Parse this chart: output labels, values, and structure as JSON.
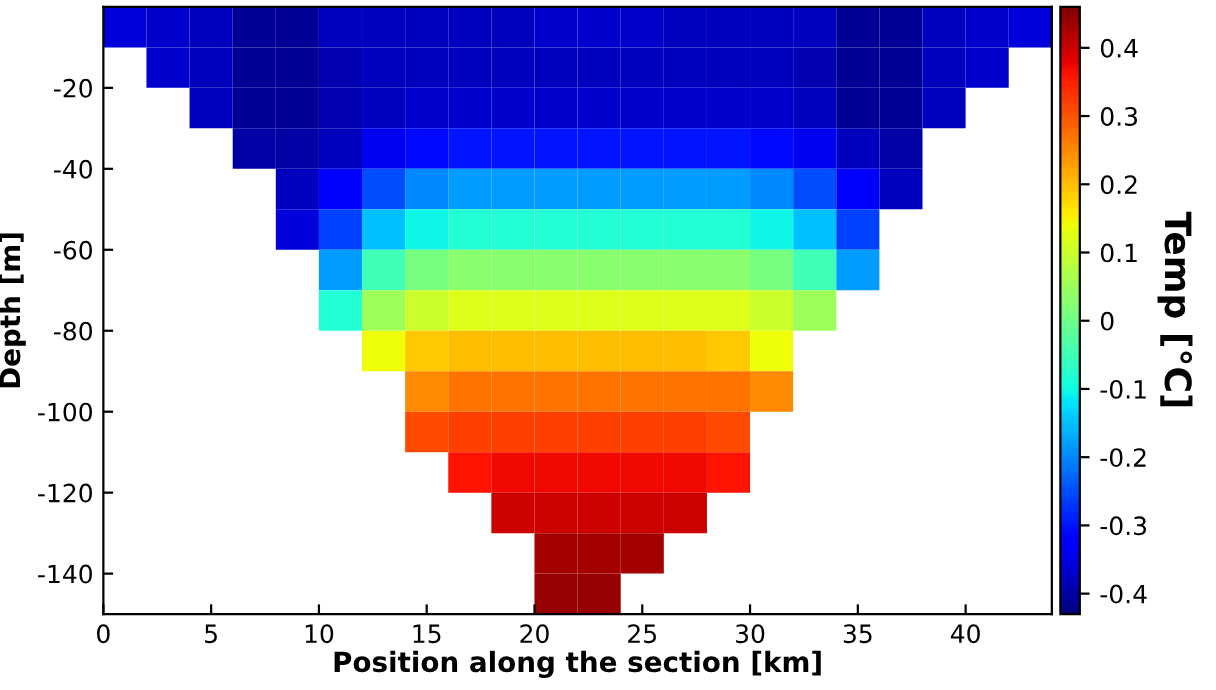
{
  "chart_data": {
    "type": "heatmap",
    "xlabel": "Position along the section [km]",
    "ylabel": "Depth [m]",
    "clabel": "Temp [°C]",
    "xlim": [
      0,
      44
    ],
    "ylim": [
      -150,
      0
    ],
    "xticks": [
      0,
      5,
      10,
      15,
      20,
      25,
      30,
      35,
      40
    ],
    "yticks": [
      -140,
      -120,
      -100,
      -80,
      -60,
      -40,
      -20
    ],
    "clim": [
      -0.43,
      0.46
    ],
    "cticks": [
      -0.4,
      -0.3,
      -0.2,
      -0.1,
      0,
      0.1,
      0.2,
      0.3,
      0.4
    ],
    "cells": [
      [
        -0.36,
        -0.37,
        -0.38,
        -0.41,
        -0.41,
        -0.38,
        -0.38,
        -0.38,
        -0.38,
        -0.38,
        -0.37,
        -0.37,
        -0.37,
        -0.38,
        -0.38,
        -0.38,
        -0.38,
        -0.41,
        -0.41,
        -0.38,
        -0.37,
        -0.36
      ],
      [
        null,
        -0.37,
        -0.38,
        -0.41,
        -0.41,
        -0.39,
        -0.38,
        -0.38,
        -0.38,
        -0.38,
        -0.38,
        -0.38,
        -0.38,
        -0.38,
        -0.38,
        -0.38,
        -0.39,
        -0.41,
        -0.41,
        -0.38,
        -0.37,
        null
      ],
      [
        null,
        null,
        -0.38,
        -0.41,
        -0.41,
        -0.39,
        -0.38,
        -0.37,
        -0.37,
        -0.37,
        -0.37,
        -0.37,
        -0.37,
        -0.37,
        -0.37,
        -0.37,
        -0.38,
        -0.41,
        -0.41,
        -0.38,
        null,
        null
      ],
      [
        null,
        null,
        null,
        -0.4,
        -0.4,
        -0.38,
        -0.34,
        -0.31,
        -0.3,
        -0.3,
        -0.3,
        -0.3,
        -0.3,
        -0.3,
        -0.3,
        -0.31,
        -0.34,
        -0.38,
        -0.4,
        null,
        null,
        null
      ],
      [
        null,
        null,
        null,
        null,
        -0.38,
        -0.33,
        -0.25,
        -0.2,
        -0.18,
        -0.18,
        -0.18,
        -0.18,
        -0.18,
        -0.18,
        -0.18,
        -0.2,
        -0.25,
        -0.33,
        -0.38,
        null,
        null,
        null
      ],
      [
        null,
        null,
        null,
        null,
        -0.36,
        -0.26,
        -0.15,
        -0.1,
        -0.08,
        -0.08,
        -0.08,
        -0.08,
        -0.08,
        -0.08,
        -0.08,
        -0.1,
        -0.15,
        -0.26,
        null,
        null,
        null,
        null
      ],
      [
        null,
        null,
        null,
        null,
        null,
        -0.18,
        -0.05,
        0.01,
        0.03,
        0.03,
        0.03,
        0.03,
        0.03,
        0.03,
        0.03,
        0.01,
        -0.05,
        -0.18,
        null,
        null,
        null,
        null
      ],
      [
        null,
        null,
        null,
        null,
        null,
        -0.08,
        0.05,
        0.1,
        0.12,
        0.12,
        0.12,
        0.12,
        0.12,
        0.12,
        0.12,
        0.1,
        0.05,
        null,
        null,
        null,
        null,
        null
      ],
      [
        null,
        null,
        null,
        null,
        null,
        null,
        0.14,
        0.19,
        0.2,
        0.2,
        0.2,
        0.2,
        0.2,
        0.2,
        0.19,
        0.14,
        null,
        null,
        null,
        null,
        null,
        null
      ],
      [
        null,
        null,
        null,
        null,
        null,
        null,
        null,
        0.25,
        0.27,
        0.27,
        0.27,
        0.27,
        0.27,
        0.27,
        0.27,
        0.25,
        null,
        null,
        null,
        null,
        null,
        null
      ],
      [
        null,
        null,
        null,
        null,
        null,
        null,
        null,
        0.31,
        0.32,
        0.32,
        0.32,
        0.32,
        0.32,
        0.32,
        0.31,
        null,
        null,
        null,
        null,
        null,
        null,
        null
      ],
      [
        null,
        null,
        null,
        null,
        null,
        null,
        null,
        null,
        0.36,
        0.37,
        0.37,
        0.37,
        0.37,
        0.37,
        0.36,
        null,
        null,
        null,
        null,
        null,
        null,
        null
      ],
      [
        null,
        null,
        null,
        null,
        null,
        null,
        null,
        null,
        null,
        0.4,
        0.4,
        0.4,
        0.4,
        0.4,
        null,
        null,
        null,
        null,
        null,
        null,
        null,
        null
      ],
      [
        null,
        null,
        null,
        null,
        null,
        null,
        null,
        null,
        null,
        null,
        0.43,
        0.43,
        0.43,
        null,
        null,
        null,
        null,
        null,
        null,
        null,
        null,
        null
      ],
      [
        null,
        null,
        null,
        null,
        null,
        null,
        null,
        null,
        null,
        null,
        0.44,
        0.44,
        null,
        null,
        null,
        null,
        null,
        null,
        null,
        null,
        null,
        null
      ]
    ]
  }
}
